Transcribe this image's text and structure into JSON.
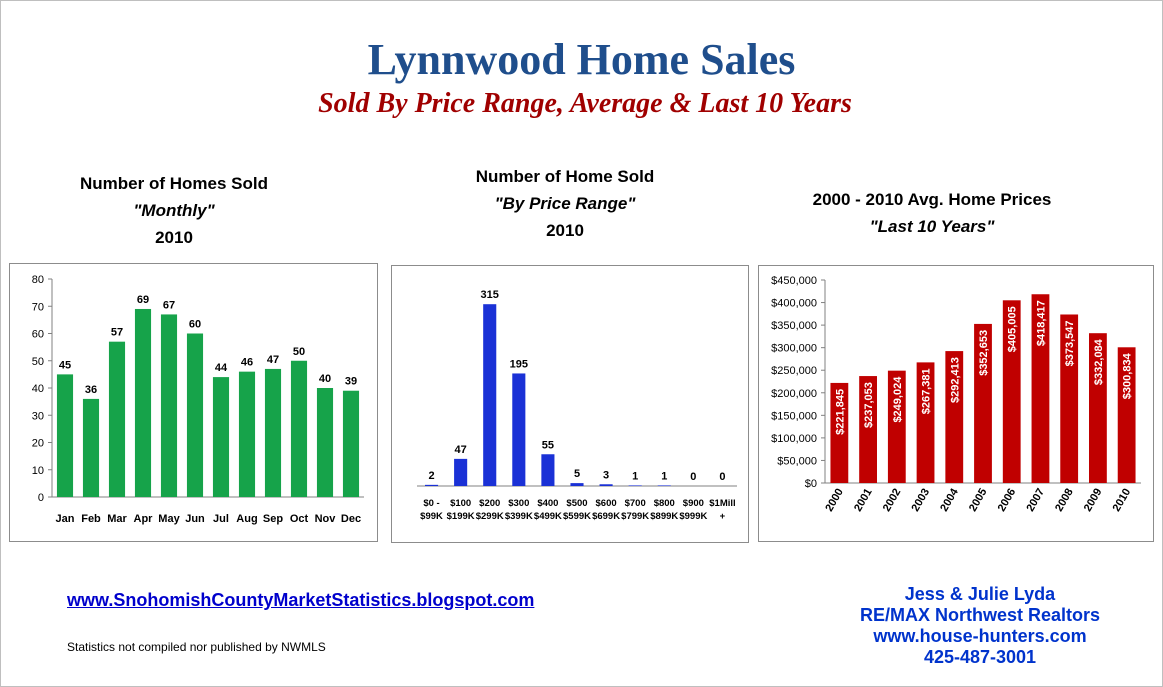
{
  "header": {
    "title": "Lynnwood Home Sales",
    "subtitle": "Sold By Price Range, Average & Last 10 Years"
  },
  "footer": {
    "link": "www.SnohomishCountyMarketStatistics.blogspot.com",
    "note": "Statistics not compiled nor published by NWMLS",
    "contact": [
      "Jess & Julie Lyda",
      "RE/MAX Northwest Realtors",
      "www.house-hunters.com",
      "425-487-3001"
    ]
  },
  "chart_data": [
    {
      "type": "bar",
      "title": [
        "Number of Homes Sold",
        "\"Monthly\"",
        "2010"
      ],
      "categories": [
        "Jan",
        "Feb",
        "Mar",
        "Apr",
        "May",
        "Jun",
        "Jul",
        "Aug",
        "Sep",
        "Oct",
        "Nov",
        "Dec"
      ],
      "values": [
        45,
        36,
        57,
        69,
        67,
        60,
        44,
        46,
        47,
        50,
        40,
        39
      ],
      "data_labels": [
        "45",
        "36",
        "57",
        "69",
        "67",
        "60",
        "44",
        "46",
        "47",
        "50",
        "40",
        "39"
      ],
      "ylim": [
        0,
        80
      ],
      "yticks": [
        "0",
        "10",
        "20",
        "30",
        "40",
        "50",
        "60",
        "70",
        "80"
      ],
      "color": "#16a34a",
      "grid": false
    },
    {
      "type": "bar",
      "title": [
        "Number of Home Sold",
        "\"By Price Range\"",
        "2010"
      ],
      "categories": [
        [
          "$0 -",
          "$99K"
        ],
        [
          "$100",
          "$199K"
        ],
        [
          "$200",
          "$299K"
        ],
        [
          "$300",
          "$399K"
        ],
        [
          "$400",
          "$499K"
        ],
        [
          "$500",
          "$599K"
        ],
        [
          "$600",
          "$699K"
        ],
        [
          "$700",
          "$799K"
        ],
        [
          "$800",
          "$899K"
        ],
        [
          "$900",
          "$999K"
        ],
        [
          "$1Mill",
          "+"
        ]
      ],
      "values": [
        2,
        47,
        315,
        195,
        55,
        5,
        3,
        1,
        1,
        0,
        0
      ],
      "data_labels": [
        "2",
        "47",
        "315",
        "195",
        "55",
        "5",
        "3",
        "1",
        "1",
        "0",
        "0"
      ],
      "ylim": [
        0,
        350
      ],
      "color": "#1a31d6",
      "grid": false
    },
    {
      "type": "bar",
      "title": [
        "2000 - 2010 Avg. Home Prices",
        "\"Last 10 Years\""
      ],
      "categories": [
        "2000",
        "2001",
        "2002",
        "2003",
        "2004",
        "2005",
        "2006",
        "2007",
        "2008",
        "2009",
        "2010"
      ],
      "values": [
        221845,
        237053,
        249024,
        267381,
        292413,
        352653,
        405005,
        418417,
        373547,
        332084,
        300834
      ],
      "data_labels": [
        "$221,845",
        "$237,053",
        "$249,024",
        "$267,381",
        "$292,413",
        "$352,653",
        "$405,005",
        "$418,417",
        "$373,547",
        "$332,084",
        "$300,834"
      ],
      "ylim": [
        0,
        450000
      ],
      "yticks": [
        "$0",
        "$50,000",
        "$100,000",
        "$150,000",
        "$200,000",
        "$250,000",
        "$300,000",
        "$350,000",
        "$400,000",
        "$450,000"
      ],
      "color": "#c00000",
      "grid": false
    }
  ]
}
